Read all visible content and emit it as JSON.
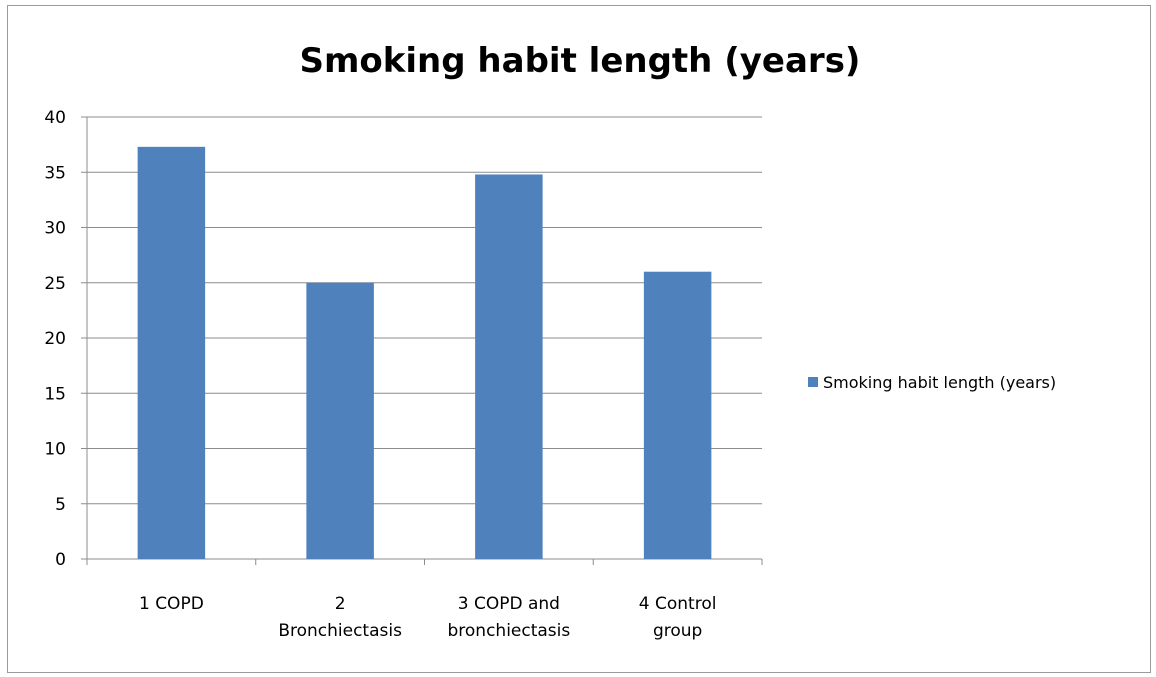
{
  "chart_data": {
    "type": "bar",
    "title": "Smoking habit length (years)",
    "categories": [
      [
        "1 COPD"
      ],
      [
        "2",
        "Bronchiectasis"
      ],
      [
        "3 COPD and",
        "bronchiectasis"
      ],
      [
        "4 Control",
        "group"
      ]
    ],
    "series": [
      {
        "name": "Smoking habit length (years)",
        "values": [
          37.3,
          25.0,
          34.8,
          26.0
        ],
        "color": "#4f81bd"
      }
    ],
    "ylim": [
      0,
      40
    ],
    "yticks": [
      0,
      5,
      10,
      15,
      20,
      25,
      30,
      35,
      40
    ],
    "grid": true,
    "legend_position": "right"
  }
}
